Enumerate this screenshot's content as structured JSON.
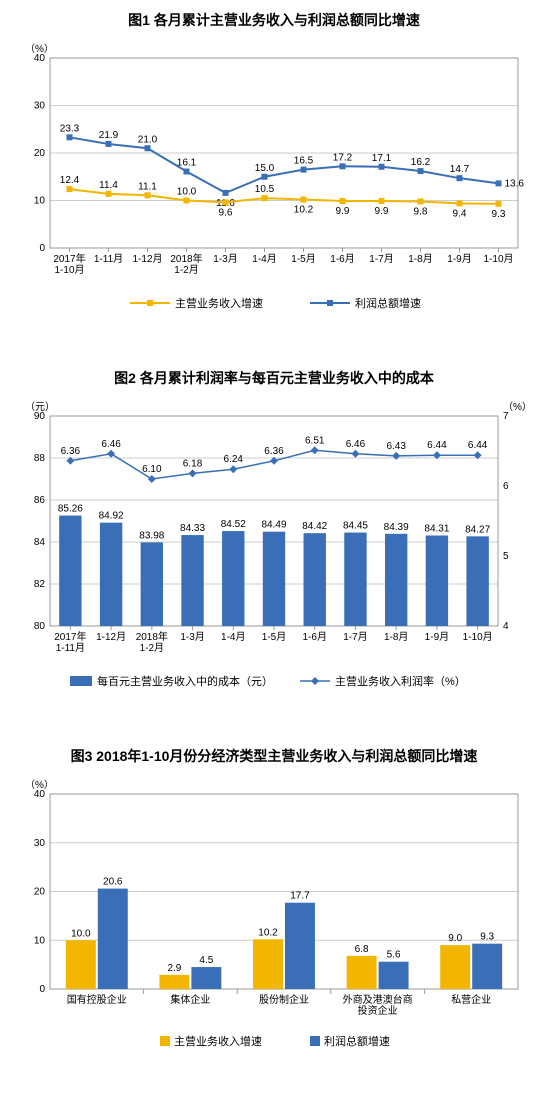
{
  "chart1": {
    "type": "line",
    "title": "图1 各月累计主营业务收入与利润总额同比增速",
    "y_unit": "（%）",
    "categories": [
      "2017年\n1-10月",
      "1-11月",
      "1-12月",
      "2018年\n1-2月",
      "1-3月",
      "1-4月",
      "1-5月",
      "1-6月",
      "1-7月",
      "1-8月",
      "1-9月",
      "1-10月"
    ],
    "series1": {
      "name": "主营业务收入增速",
      "color": "#f2b600",
      "values": [
        12.4,
        11.4,
        11.1,
        10.0,
        9.6,
        10.5,
        10.2,
        9.9,
        9.9,
        9.8,
        9.4,
        9.3
      ],
      "label_pos": [
        "above",
        "above",
        "above",
        "above",
        "below",
        "above",
        "below",
        "below",
        "below",
        "below",
        "below",
        "below"
      ]
    },
    "series2": {
      "name": "利润总额增速",
      "color": "#3a6fb7",
      "values": [
        23.3,
        21.9,
        21.0,
        16.1,
        11.6,
        15.0,
        16.5,
        17.2,
        17.1,
        16.2,
        14.7,
        13.6
      ],
      "label_pos": [
        "above",
        "above",
        "above",
        "above",
        "below",
        "above",
        "above",
        "above",
        "above",
        "above",
        "above",
        "right"
      ]
    },
    "ylim": [
      0,
      40
    ],
    "ytick_step": 10,
    "background_color": "#ffffff",
    "grid_color": "#cccccc",
    "marker": "square",
    "line_width": 2
  },
  "chart2": {
    "type": "bar+line",
    "title": "图2 各月累计利润率与每百元主营业务收入中的成本",
    "y_unit_left": "（元）",
    "y_unit_right": "（%）",
    "categories": [
      "2017年\n1-11月",
      "1-12月",
      "2018年\n1-2月",
      "1-3月",
      "1-4月",
      "1-5月",
      "1-6月",
      "1-7月",
      "1-8月",
      "1-9月",
      "1-10月"
    ],
    "bars": {
      "name": "每百元主营业务收入中的成本（元）",
      "color": "#3a6fb7",
      "values": [
        85.26,
        84.92,
        83.98,
        84.33,
        84.52,
        84.49,
        84.42,
        84.45,
        84.39,
        84.31,
        84.27
      ]
    },
    "line": {
      "name": "主营业务收入利润率（%）",
      "color": "#3a6fb7",
      "values": [
        6.36,
        6.46,
        6.1,
        6.18,
        6.24,
        6.36,
        6.51,
        6.46,
        6.43,
        6.44,
        6.44
      ]
    },
    "ylim_left": [
      80,
      90
    ],
    "ytick_step_left": 2,
    "ylim_right": [
      4,
      7
    ],
    "ytick_step_right": 1,
    "grid_color": "#cccccc",
    "bar_width": 0.55,
    "marker": "diamond",
    "line_width": 1.5
  },
  "chart3": {
    "type": "grouped-bar",
    "title": "图3 2018年1-10月份分经济类型主营业务收入与利润总额同比增速",
    "y_unit": "（%）",
    "categories": [
      "国有控股企业",
      "集体企业",
      "股份制企业",
      "外商及港澳台商\n投资企业",
      "私营企业"
    ],
    "series1": {
      "name": "主营业务收入增速",
      "color": "#f2b600",
      "values": [
        10.0,
        2.9,
        10.2,
        6.8,
        9.0
      ]
    },
    "series2": {
      "name": "利润总额增速",
      "color": "#3a6fb7",
      "values": [
        20.6,
        4.5,
        17.7,
        5.6,
        9.3
      ]
    },
    "ylim": [
      0,
      40
    ],
    "ytick_step": 10,
    "grid_color": "#cccccc",
    "bar_width": 0.32
  }
}
